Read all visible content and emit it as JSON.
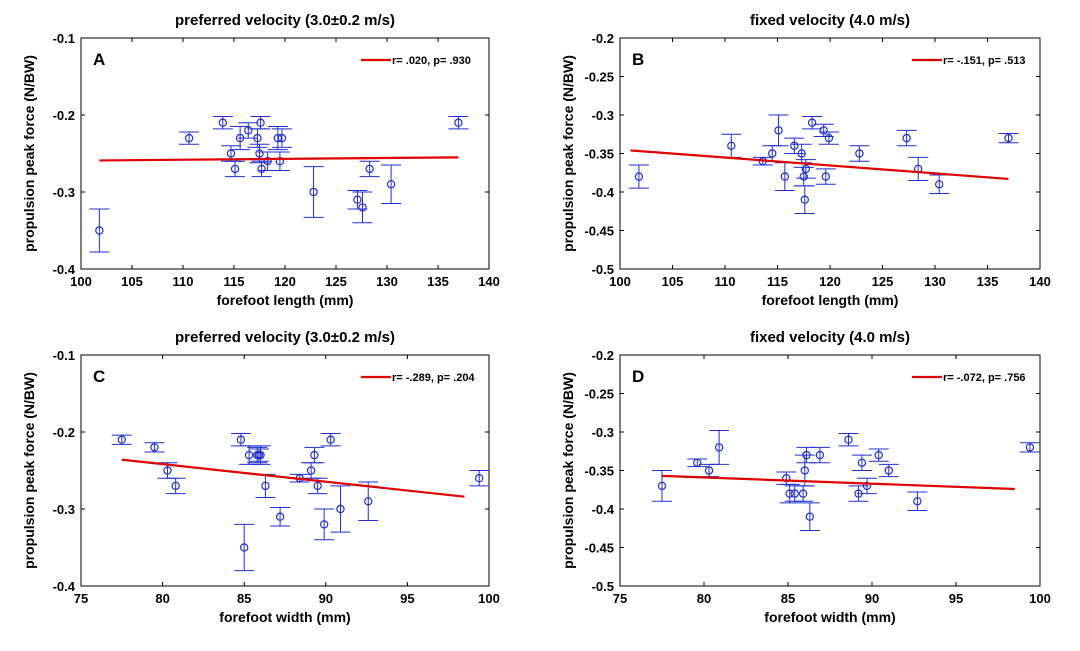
{
  "chart_data": [
    {
      "type": "scatter",
      "panel_label": "A",
      "title": "preferred velocity (3.0±0.2 m/s)",
      "xlabel": "forefoot length (mm)",
      "ylabel": "propulsion peak force (N/BW)",
      "xlim": [
        100,
        140
      ],
      "ylim": [
        -0.4,
        -0.1
      ],
      "xticks": [
        "100",
        "105",
        "110",
        "115",
        "120",
        "125",
        "130",
        "135",
        "140"
      ],
      "yticks": [
        "-0.4",
        "-0.3",
        "-0.2",
        "-0.1"
      ],
      "grid": false,
      "legend_position": "top-right",
      "legend_text": "r= .020, p= .930",
      "colors": {
        "points": "#1f2fd0",
        "fit": "#e00000"
      },
      "points": [
        {
          "x": 101.8,
          "y": -0.35,
          "err": 0.028
        },
        {
          "x": 110.6,
          "y": -0.23,
          "err": 0.008
        },
        {
          "x": 113.9,
          "y": -0.21,
          "err": 0.008
        },
        {
          "x": 114.7,
          "y": -0.25,
          "err": 0.01
        },
        {
          "x": 115.1,
          "y": -0.27,
          "err": 0.01
        },
        {
          "x": 115.6,
          "y": -0.23,
          "err": 0.015
        },
        {
          "x": 116.4,
          "y": -0.22,
          "err": 0.01
        },
        {
          "x": 117.3,
          "y": -0.23,
          "err": 0.012
        },
        {
          "x": 117.5,
          "y": -0.25,
          "err": 0.012
        },
        {
          "x": 117.6,
          "y": -0.21,
          "err": 0.008
        },
        {
          "x": 117.7,
          "y": -0.27,
          "err": 0.01
        },
        {
          "x": 118.3,
          "y": -0.26,
          "err": 0.012
        },
        {
          "x": 119.3,
          "y": -0.23,
          "err": 0.015
        },
        {
          "x": 119.5,
          "y": -0.26,
          "err": 0.012
        },
        {
          "x": 119.7,
          "y": -0.23,
          "err": 0.012
        },
        {
          "x": 122.8,
          "y": -0.3,
          "err": 0.033
        },
        {
          "x": 127.1,
          "y": -0.31,
          "err": 0.012
        },
        {
          "x": 127.6,
          "y": -0.32,
          "err": 0.02
        },
        {
          "x": 128.3,
          "y": -0.27,
          "err": 0.01
        },
        {
          "x": 130.4,
          "y": -0.29,
          "err": 0.025
        },
        {
          "x": 137.0,
          "y": -0.21,
          "err": 0.008
        }
      ],
      "fit": {
        "x": [
          101.8,
          137.0
        ],
        "y": [
          -0.259,
          -0.255
        ]
      }
    },
    {
      "type": "scatter",
      "panel_label": "B",
      "title": "fixed velocity (4.0 m/s)",
      "xlabel": "forefoot length (mm)",
      "ylabel": "propulsion peak force (N/BW)",
      "xlim": [
        100,
        140
      ],
      "ylim": [
        -0.5,
        -0.2
      ],
      "xticks": [
        "100",
        "105",
        "110",
        "115",
        "120",
        "125",
        "130",
        "135",
        "140"
      ],
      "yticks": [
        "-0.5",
        "-0.45",
        "-0.4",
        "-0.35",
        "-0.3",
        "-0.25",
        "-0.2"
      ],
      "grid": false,
      "legend_position": "top-right",
      "legend_text": "r= -.151, p= .513",
      "colors": {
        "points": "#1f2fd0",
        "fit": "#e00000"
      },
      "points": [
        {
          "x": 101.8,
          "y": -0.38,
          "err": 0.015
        },
        {
          "x": 110.6,
          "y": -0.34,
          "err": 0.015
        },
        {
          "x": 113.6,
          "y": -0.36,
          "err": 0.005
        },
        {
          "x": 114.5,
          "y": -0.35,
          "err": 0.01
        },
        {
          "x": 115.1,
          "y": -0.32,
          "err": 0.02
        },
        {
          "x": 115.7,
          "y": -0.38,
          "err": 0.018
        },
        {
          "x": 116.6,
          "y": -0.34,
          "err": 0.01
        },
        {
          "x": 117.3,
          "y": -0.35,
          "err": 0.012
        },
        {
          "x": 117.5,
          "y": -0.38,
          "err": 0.012
        },
        {
          "x": 117.6,
          "y": -0.41,
          "err": 0.018
        },
        {
          "x": 117.7,
          "y": -0.37,
          "err": 0.012
        },
        {
          "x": 118.3,
          "y": -0.31,
          "err": 0.008
        },
        {
          "x": 119.4,
          "y": -0.32,
          "err": 0.008
        },
        {
          "x": 119.6,
          "y": -0.38,
          "err": 0.01
        },
        {
          "x": 119.9,
          "y": -0.33,
          "err": 0.008
        },
        {
          "x": 122.8,
          "y": -0.35,
          "err": 0.01
        },
        {
          "x": 127.3,
          "y": -0.33,
          "err": 0.01
        },
        {
          "x": 128.4,
          "y": -0.37,
          "err": 0.015
        },
        {
          "x": 130.4,
          "y": -0.39,
          "err": 0.012
        },
        {
          "x": 137.0,
          "y": -0.33,
          "err": 0.006
        }
      ],
      "fit": {
        "x": [
          101.0,
          137.0
        ],
        "y": [
          -0.346,
          -0.383
        ]
      }
    },
    {
      "type": "scatter",
      "panel_label": "C",
      "title": "preferred velocity (3.0±0.2 m/s)",
      "xlabel": "forefoot width (mm)",
      "ylabel": "propulsion peak force (N/BW)",
      "xlim": [
        75,
        100
      ],
      "ylim": [
        -0.4,
        -0.1
      ],
      "xticks": [
        "75",
        "80",
        "85",
        "90",
        "95",
        "100"
      ],
      "yticks": [
        "-0.4",
        "-0.3",
        "-0.2",
        "-0.1"
      ],
      "grid": false,
      "legend_position": "top-right",
      "legend_text": "r= -.289, p= .204",
      "colors": {
        "points": "#1f2fd0",
        "fit": "#e00000"
      },
      "points": [
        {
          "x": 77.5,
          "y": -0.21,
          "err": 0.006
        },
        {
          "x": 79.5,
          "y": -0.22,
          "err": 0.006
        },
        {
          "x": 80.3,
          "y": -0.25,
          "err": 0.01
        },
        {
          "x": 80.8,
          "y": -0.27,
          "err": 0.01
        },
        {
          "x": 84.8,
          "y": -0.21,
          "err": 0.008
        },
        {
          "x": 85.0,
          "y": -0.35,
          "err": 0.03
        },
        {
          "x": 85.3,
          "y": -0.23,
          "err": 0.012
        },
        {
          "x": 85.8,
          "y": -0.23,
          "err": 0.01
        },
        {
          "x": 85.9,
          "y": -0.23,
          "err": 0.008
        },
        {
          "x": 86.0,
          "y": -0.23,
          "err": 0.012
        },
        {
          "x": 86.3,
          "y": -0.27,
          "err": 0.015
        },
        {
          "x": 87.2,
          "y": -0.31,
          "err": 0.012
        },
        {
          "x": 88.4,
          "y": -0.26,
          "err": 0.005
        },
        {
          "x": 89.1,
          "y": -0.25,
          "err": 0.01
        },
        {
          "x": 89.3,
          "y": -0.23,
          "err": 0.01
        },
        {
          "x": 89.5,
          "y": -0.27,
          "err": 0.01
        },
        {
          "x": 89.9,
          "y": -0.32,
          "err": 0.02
        },
        {
          "x": 90.3,
          "y": -0.21,
          "err": 0.008
        },
        {
          "x": 90.9,
          "y": -0.3,
          "err": 0.03
        },
        {
          "x": 92.6,
          "y": -0.29,
          "err": 0.025
        },
        {
          "x": 99.4,
          "y": -0.26,
          "err": 0.01
        }
      ],
      "fit": {
        "x": [
          77.5,
          98.5
        ],
        "y": [
          -0.236,
          -0.284
        ]
      }
    },
    {
      "type": "scatter",
      "panel_label": "D",
      "title": "fixed velocity (4.0 m/s)",
      "xlabel": "forefoot width (mm)",
      "ylabel": "propulsion peak force (N/BW)",
      "xlim": [
        75,
        100
      ],
      "ylim": [
        -0.5,
        -0.2
      ],
      "xticks": [
        "75",
        "80",
        "85",
        "90",
        "95",
        "100"
      ],
      "yticks": [
        "-0.5",
        "-0.45",
        "-0.4",
        "-0.35",
        "-0.3",
        "-0.25",
        "-0.2"
      ],
      "grid": false,
      "legend_position": "top-right",
      "legend_text": "r= -.072, p= .756",
      "colors": {
        "points": "#1f2fd0",
        "fit": "#e00000"
      },
      "points": [
        {
          "x": 77.5,
          "y": -0.37,
          "err": 0.02
        },
        {
          "x": 79.6,
          "y": -0.34,
          "err": 0.005
        },
        {
          "x": 80.3,
          "y": -0.35,
          "err": 0.008
        },
        {
          "x": 80.9,
          "y": -0.32,
          "err": 0.022
        },
        {
          "x": 84.9,
          "y": -0.36,
          "err": 0.008
        },
        {
          "x": 85.1,
          "y": -0.38,
          "err": 0.012
        },
        {
          "x": 85.4,
          "y": -0.38,
          "err": 0.01
        },
        {
          "x": 85.9,
          "y": -0.38,
          "err": 0.01
        },
        {
          "x": 86.0,
          "y": -0.35,
          "err": 0.02
        },
        {
          "x": 86.1,
          "y": -0.33,
          "err": 0.01
        },
        {
          "x": 86.3,
          "y": -0.41,
          "err": 0.018
        },
        {
          "x": 86.9,
          "y": -0.33,
          "err": 0.01
        },
        {
          "x": 88.6,
          "y": -0.31,
          "err": 0.008
        },
        {
          "x": 89.2,
          "y": -0.38,
          "err": 0.01
        },
        {
          "x": 89.4,
          "y": -0.34,
          "err": 0.01
        },
        {
          "x": 89.7,
          "y": -0.37,
          "err": 0.01
        },
        {
          "x": 90.4,
          "y": -0.33,
          "err": 0.008
        },
        {
          "x": 91.0,
          "y": -0.35,
          "err": 0.008
        },
        {
          "x": 92.7,
          "y": -0.39,
          "err": 0.012
        },
        {
          "x": 99.4,
          "y": -0.32,
          "err": 0.006
        }
      ],
      "fit": {
        "x": [
          77.5,
          98.5
        ],
        "y": [
          -0.357,
          -0.374
        ]
      }
    }
  ]
}
